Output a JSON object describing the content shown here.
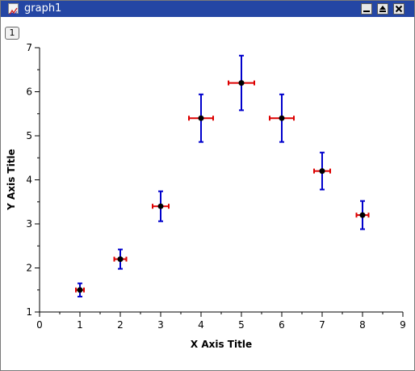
{
  "window": {
    "title": "graph1",
    "layer_label": "1",
    "icons": {
      "app": "graph-app-icon",
      "minimize": "minimize-icon",
      "maximize": "maximize-icon",
      "close": "close-icon"
    }
  },
  "colors": {
    "titlebar": "#2446a4",
    "y_error": "#0000cc",
    "x_error": "#dd0000",
    "point": "#000000"
  },
  "chart_data": {
    "type": "scatter",
    "xlabel": "X Axis Title",
    "ylabel": "Y Axis Title",
    "xlim": [
      0,
      9
    ],
    "ylim": [
      1,
      7
    ],
    "x_ticks": [
      0,
      1,
      2,
      3,
      4,
      5,
      6,
      7,
      8,
      9
    ],
    "y_ticks": [
      1,
      2,
      3,
      4,
      5,
      6,
      7
    ],
    "grid": false,
    "points": [
      {
        "x": 1,
        "y": 1.5,
        "xerr": 0.1,
        "yerr": 0.15
      },
      {
        "x": 2,
        "y": 2.2,
        "xerr": 0.15,
        "yerr": 0.22
      },
      {
        "x": 3,
        "y": 3.4,
        "xerr": 0.2,
        "yerr": 0.34
      },
      {
        "x": 4,
        "y": 5.4,
        "xerr": 0.3,
        "yerr": 0.54
      },
      {
        "x": 5,
        "y": 6.2,
        "xerr": 0.32,
        "yerr": 0.62
      },
      {
        "x": 6,
        "y": 5.4,
        "xerr": 0.3,
        "yerr": 0.54
      },
      {
        "x": 7,
        "y": 4.2,
        "xerr": 0.2,
        "yerr": 0.42
      },
      {
        "x": 8,
        "y": 3.2,
        "xerr": 0.15,
        "yerr": 0.32
      }
    ]
  }
}
